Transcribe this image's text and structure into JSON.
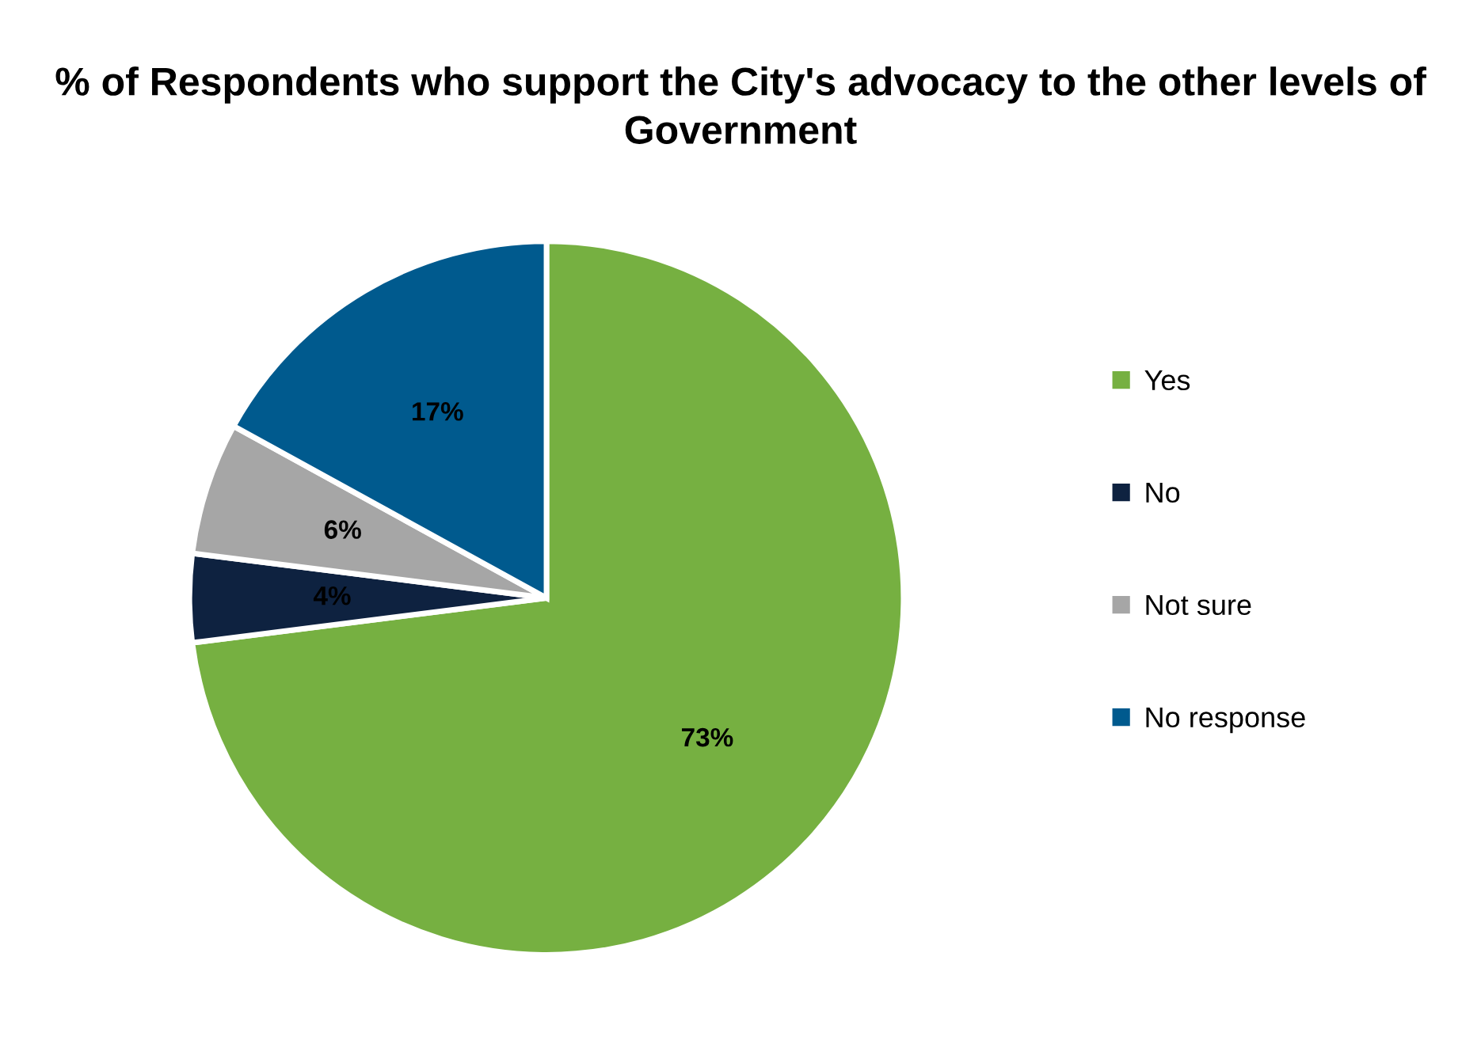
{
  "chart_data": {
    "type": "pie",
    "title": "% of Respondents who support the City's advocacy to the other levels of Government",
    "categories": [
      "Yes",
      "No",
      "Not sure",
      "No response"
    ],
    "values": [
      73,
      4,
      6,
      17
    ],
    "colors": [
      "#76b041",
      "#0e2240",
      "#a6a6a6",
      "#005a8e"
    ],
    "value_labels": [
      "73%",
      "4%",
      "6%",
      "17%"
    ],
    "legend": "right"
  }
}
